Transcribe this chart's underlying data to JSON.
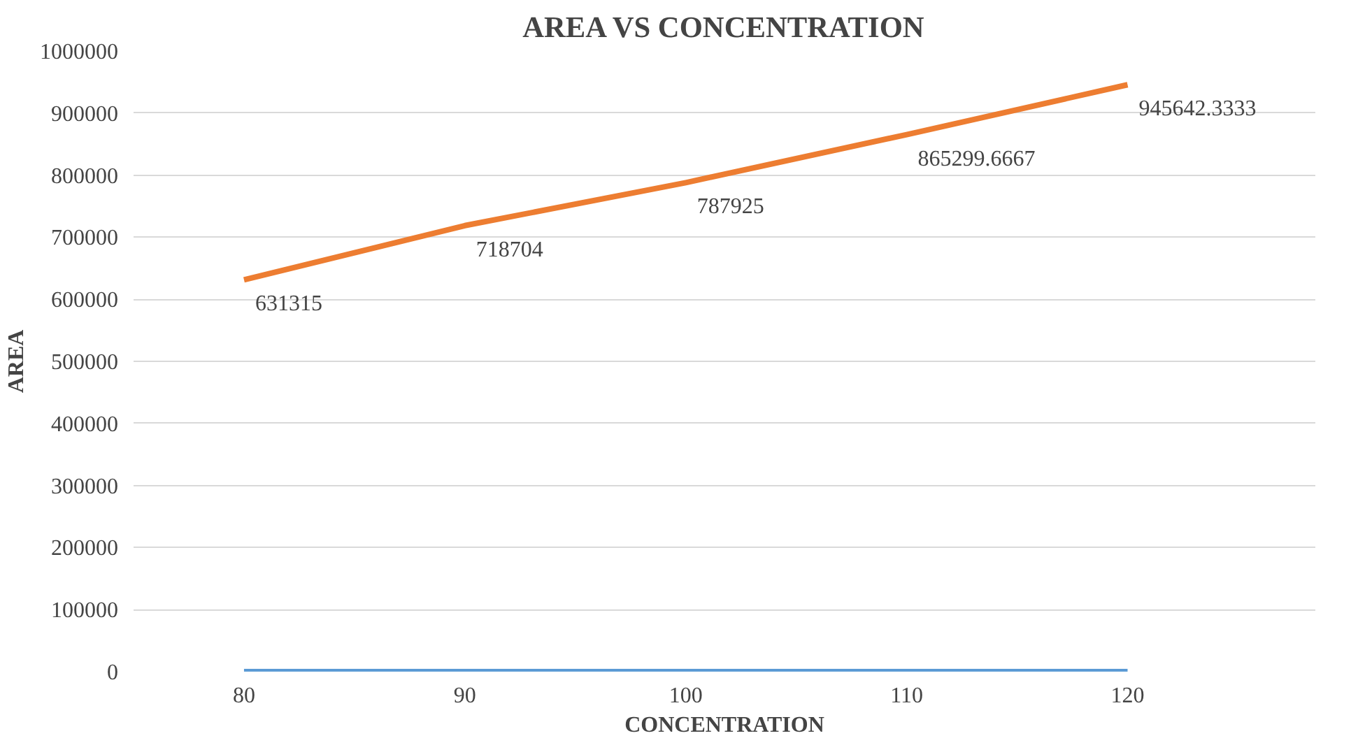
{
  "chart_data": {
    "type": "line",
    "title": "AREA VS CONCENTRATION",
    "xlabel": "CONCENTRATION",
    "ylabel": "AREA",
    "categories": [
      "80",
      "90",
      "100",
      "110",
      "120"
    ],
    "ylim": [
      0,
      1000000
    ],
    "yticks": [
      0,
      100000,
      200000,
      300000,
      400000,
      500000,
      600000,
      700000,
      800000,
      900000,
      1000000
    ],
    "grid": "y",
    "marker": "none",
    "line_style": "solid",
    "series": [
      {
        "color": "#5b9bd5",
        "values": [
          0,
          0,
          0,
          0,
          0
        ]
      },
      {
        "color": "#ed7d31",
        "values": [
          631315,
          718704,
          787925,
          865299.6667,
          945642.3333
        ],
        "value_labels": [
          "631315",
          "718704",
          "787925",
          "865299.6667",
          "945642.3333"
        ]
      }
    ]
  }
}
